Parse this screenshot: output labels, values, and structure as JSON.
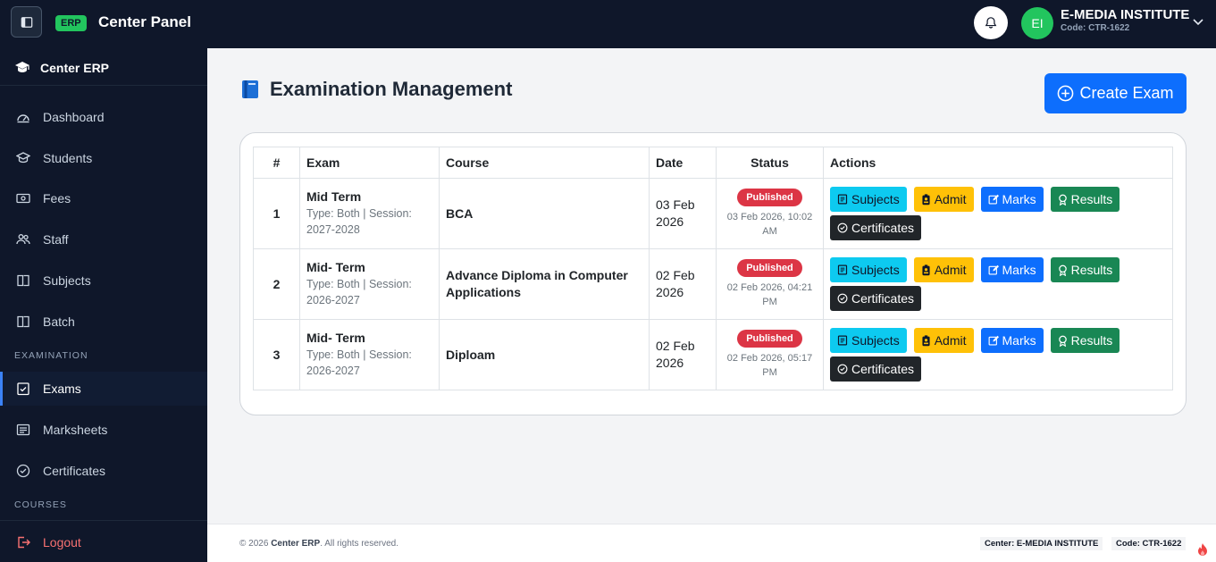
{
  "topbar": {
    "badge": "ERP",
    "title": "Center Panel",
    "avatar_initials": "EI",
    "institute_name": "E-MEDIA INSTITUTE",
    "institute_code": "Code: CTR-1622"
  },
  "sidebar": {
    "brand": "Center ERP",
    "items": [
      {
        "label": "Dashboard",
        "icon": "dashboard-icon"
      },
      {
        "label": "Students",
        "icon": "graduation-cap-icon"
      },
      {
        "label": "Fees",
        "icon": "cash-icon"
      },
      {
        "label": "Staff",
        "icon": "people-icon"
      },
      {
        "label": "Subjects",
        "icon": "book-icon"
      },
      {
        "label": "Batch",
        "icon": "book-icon"
      }
    ],
    "section_examination": "EXAMINATION",
    "exam_items": [
      {
        "label": "Exams",
        "icon": "clipboard-check-icon",
        "active": true
      },
      {
        "label": "Marksheets",
        "icon": "list-icon"
      },
      {
        "label": "Certificates",
        "icon": "check-circle-icon"
      }
    ],
    "section_courses": "COURSES",
    "logout": "Logout"
  },
  "main": {
    "title": "Examination Management",
    "create_button": "Create Exam",
    "table": {
      "headers": [
        "#",
        "Exam",
        "Course",
        "Date",
        "Status",
        "Actions"
      ],
      "rows": [
        {
          "num": "1",
          "exam": "Mid Term",
          "meta": "Type: Both | Session: 2027-2028",
          "course": "BCA",
          "date": "03 Feb 2026",
          "status": "Published",
          "published_at": "03 Feb 2026, 10:02 AM"
        },
        {
          "num": "2",
          "exam": "Mid- Term",
          "meta": "Type: Both | Session: 2026-2027",
          "course": "Advance Diploma in Computer Applications",
          "date": "02 Feb 2026",
          "status": "Published",
          "published_at": "02 Feb 2026, 04:21 PM"
        },
        {
          "num": "3",
          "exam": "Mid- Term",
          "meta": "Type: Both | Session: 2026-2027",
          "course": "Diploam",
          "date": "02 Feb 2026",
          "status": "Published",
          "published_at": "02 Feb 2026, 05:17 PM"
        }
      ],
      "actions": {
        "subjects": "Subjects",
        "admit": "Admit",
        "marks": "Marks",
        "results": "Results",
        "certificates": "Certificates"
      }
    }
  },
  "footer": {
    "copy_prefix": "© 2026",
    "copy_brand": "Center ERP",
    "copy_suffix": ". All rights reserved.",
    "center": "Center: E-MEDIA INSTITUTE",
    "code": "Code: CTR-1622"
  },
  "colors": {
    "topbar": "#0f172a",
    "primary": "#0d6efd",
    "success": "#22c55e",
    "danger": "#dc3545",
    "info": "#0dcaf0",
    "warning": "#ffc107",
    "results": "#198754"
  }
}
